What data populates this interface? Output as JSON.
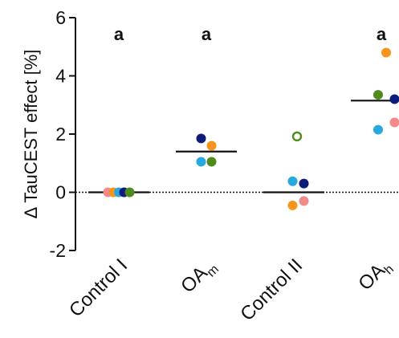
{
  "chart_data": {
    "type": "scatter",
    "ylabel": "Δ TauCEST effect [%]",
    "ylim": [
      -2,
      6
    ],
    "yticks": [
      "-2",
      "0",
      "2",
      "4",
      "6"
    ],
    "grid": false,
    "zero_line": "dotted",
    "categories": [
      {
        "label": "Control I",
        "sub": ""
      },
      {
        "label": "OA",
        "sub": "m"
      },
      {
        "label": "Control II",
        "sub": ""
      },
      {
        "label": "OA",
        "sub": "h"
      }
    ],
    "significance_labels": [
      "a",
      "a",
      "",
      "a"
    ],
    "means": [
      0.0,
      1.4,
      0.0,
      3.15
    ],
    "points": [
      {
        "category": 0,
        "offset": -0.27,
        "y": 0.0,
        "color": "#f28a8a",
        "filled": true
      },
      {
        "category": 0,
        "offset": -0.13,
        "y": 0.0,
        "color": "#f7941d",
        "filled": true
      },
      {
        "category": 0,
        "offset": 0.0,
        "y": 0.0,
        "color": "#29a8e0",
        "filled": true
      },
      {
        "category": 0,
        "offset": 0.13,
        "y": 0.0,
        "color": "#0d1b7a",
        "filled": true
      },
      {
        "category": 0,
        "offset": 0.27,
        "y": 0.0,
        "color": "#4e8a1c",
        "filled": true
      },
      {
        "category": 1,
        "offset": -0.13,
        "y": 1.85,
        "color": "#0d1b7a",
        "filled": true
      },
      {
        "category": 1,
        "offset": 0.13,
        "y": 1.6,
        "color": "#f7941d",
        "filled": true
      },
      {
        "category": 1,
        "offset": -0.13,
        "y": 1.05,
        "color": "#29a8e0",
        "filled": true
      },
      {
        "category": 1,
        "offset": 0.13,
        "y": 1.05,
        "color": "#4e8a1c",
        "filled": true
      },
      {
        "category": 2,
        "offset": 0.08,
        "y": 1.92,
        "color": "#4e8a1c",
        "filled": false
      },
      {
        "category": 2,
        "offset": -0.03,
        "y": 0.38,
        "color": "#29a8e0",
        "filled": true
      },
      {
        "category": 2,
        "offset": 0.25,
        "y": 0.3,
        "color": "#0d1b7a",
        "filled": true
      },
      {
        "category": 2,
        "offset": -0.03,
        "y": -0.45,
        "color": "#f7941d",
        "filled": true
      },
      {
        "category": 2,
        "offset": 0.25,
        "y": -0.3,
        "color": "#f28a8a",
        "filled": true
      },
      {
        "category": 3,
        "offset": 0.12,
        "y": 4.8,
        "color": "#f7941d",
        "filled": true
      },
      {
        "category": 3,
        "offset": -0.08,
        "y": 3.35,
        "color": "#4e8a1c",
        "filled": true
      },
      {
        "category": 3,
        "offset": 0.33,
        "y": 3.2,
        "color": "#0d1b7a",
        "filled": true
      },
      {
        "category": 3,
        "offset": -0.08,
        "y": 2.15,
        "color": "#29a8e0",
        "filled": true
      },
      {
        "category": 3,
        "offset": 0.33,
        "y": 2.4,
        "color": "#f28a8a",
        "filled": true
      }
    ]
  }
}
